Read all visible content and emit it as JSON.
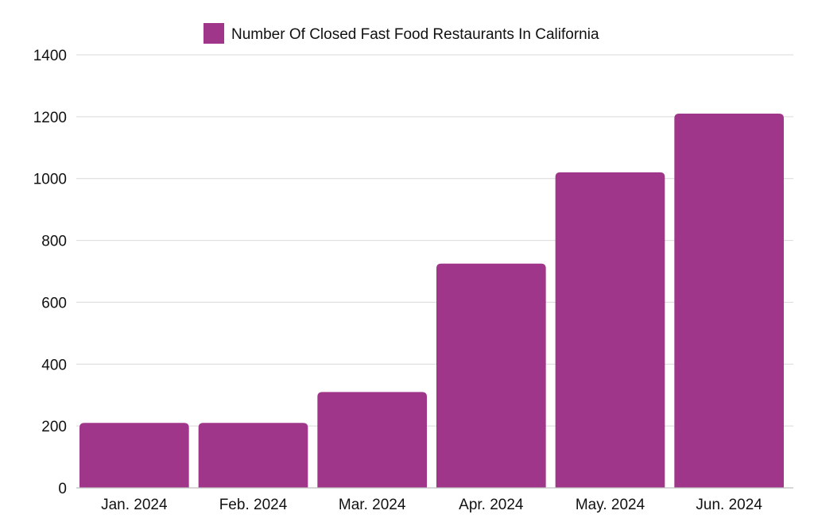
{
  "chart_data": {
    "type": "bar",
    "categories": [
      "Jan. 2024",
      "Feb. 2024",
      "Mar. 2024",
      "Apr. 2024",
      "May. 2024",
      "Jun. 2024"
    ],
    "series": [
      {
        "name": "Number Of Closed Fast Food Restaurants In California",
        "values": [
          210,
          210,
          310,
          725,
          1020,
          1210
        ],
        "color": "#a0368a"
      }
    ],
    "ylim": [
      0,
      1400
    ],
    "yticks": [
      0,
      200,
      400,
      600,
      800,
      1000,
      1200,
      1400
    ],
    "grid": true,
    "legend_position": "top-center"
  }
}
